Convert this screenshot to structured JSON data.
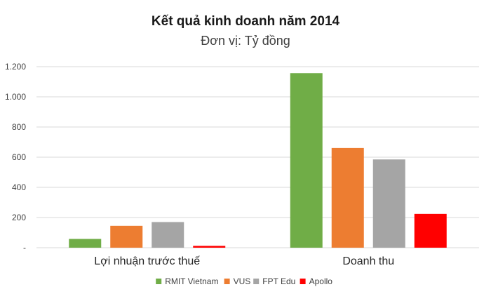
{
  "chart_data": {
    "type": "bar",
    "title": "Kết quả kinh doanh năm 2014",
    "subtitle": "Đơn vị: Tỷ đồng",
    "categories": [
      "Lợi nhuận trước thuế",
      "Doanh thu"
    ],
    "series": [
      {
        "name": "RMIT Vietnam",
        "color": "#70AD47",
        "values": [
          58,
          1157
        ]
      },
      {
        "name": "VUS",
        "color": "#ED7D31",
        "values": [
          145,
          661
        ]
      },
      {
        "name": "FPT Edu",
        "color": "#A5A5A5",
        "values": [
          170,
          585
        ]
      },
      {
        "name": "Apollo",
        "color": "#FF0000",
        "values": [
          12,
          224
        ]
      }
    ],
    "ylim": [
      0,
      1200
    ],
    "yticks": [
      0,
      200,
      400,
      600,
      800,
      1000,
      1200
    ],
    "ytick_labels": [
      "-",
      "200",
      "400",
      "600",
      "800",
      "1.000",
      "1.200"
    ],
    "grid": true,
    "legend_position": "bottom"
  }
}
